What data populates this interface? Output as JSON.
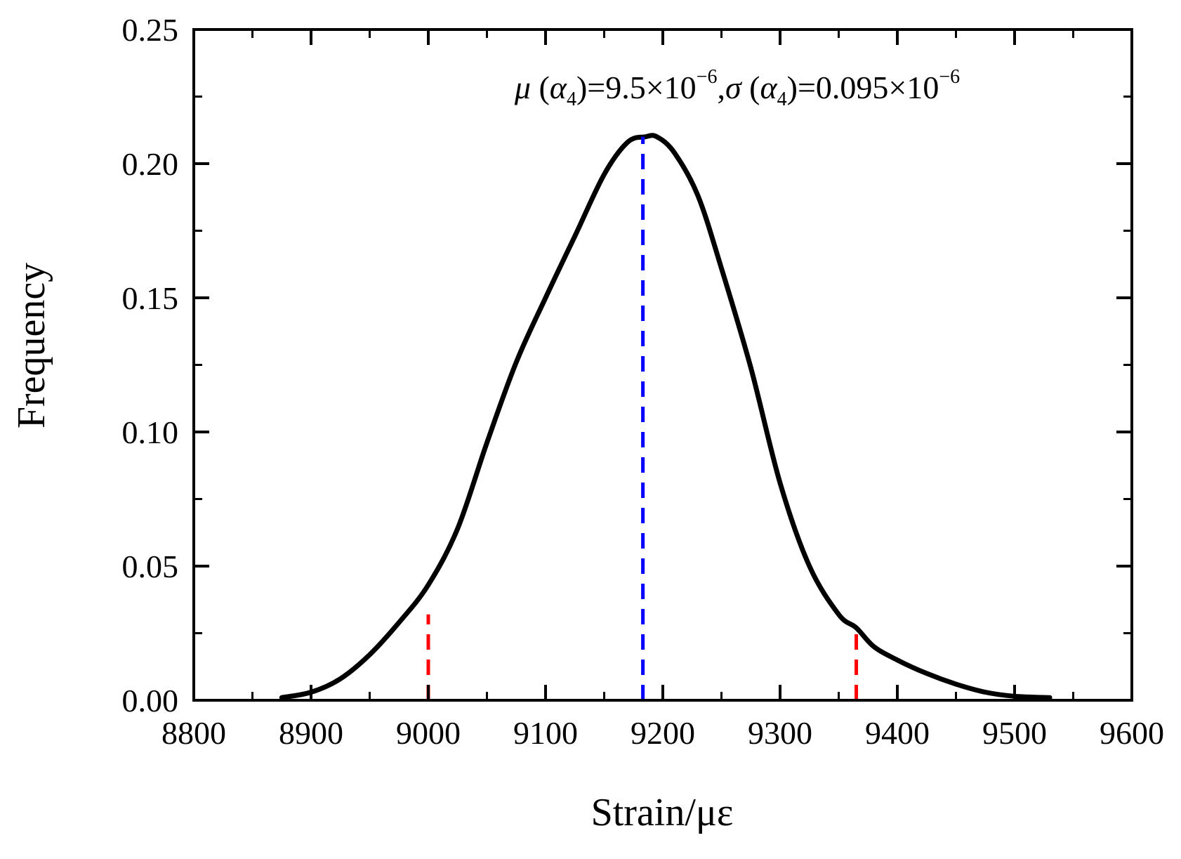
{
  "chart_data": {
    "type": "line",
    "title": "",
    "xlabel": "Strain/με",
    "ylabel": "Frequency",
    "xlim": [
      8800,
      9600
    ],
    "ylim": [
      0,
      0.25
    ],
    "xticks": [
      8800,
      8900,
      9000,
      9100,
      9200,
      9300,
      9400,
      9500,
      9600
    ],
    "xtick_labels": [
      "8800",
      "8900",
      "9000",
      "9100",
      "9200",
      "9300",
      "9400",
      "9500",
      "9600"
    ],
    "yticks": [
      0.0,
      0.05,
      0.1,
      0.15,
      0.2,
      0.25
    ],
    "ytick_labels": [
      "0.00",
      "0.05",
      "0.10",
      "0.15",
      "0.20",
      "0.25"
    ],
    "grid": false,
    "series": [
      {
        "name": "frequency-curve",
        "color": "#000000",
        "x": [
          8875,
          8900,
          8925,
          8950,
          8975,
          9000,
          9025,
          9050,
          9075,
          9100,
          9125,
          9150,
          9170,
          9185,
          9195,
          9210,
          9230,
          9250,
          9275,
          9300,
          9325,
          9350,
          9365,
          9380,
          9400,
          9425,
          9450,
          9475,
          9500,
          9530
        ],
        "y": [
          0.001,
          0.003,
          0.008,
          0.017,
          0.029,
          0.043,
          0.064,
          0.096,
          0.126,
          0.15,
          0.173,
          0.196,
          0.208,
          0.21,
          0.21,
          0.204,
          0.188,
          0.161,
          0.124,
          0.081,
          0.05,
          0.032,
          0.027,
          0.02,
          0.015,
          0.01,
          0.006,
          0.003,
          0.0015,
          0.001
        ]
      }
    ],
    "markers": [
      {
        "name": "mean-line",
        "x": 9183,
        "y_top": 0.21,
        "color": "#0000ff",
        "style": "dashed"
      },
      {
        "name": "lower-bound-line",
        "x": 9000,
        "y_top": 0.032,
        "color": "#ff0000",
        "style": "dashed"
      },
      {
        "name": "upper-bound-line",
        "x": 9365,
        "y_top": 0.028,
        "color": "#ff0000",
        "style": "dashed"
      }
    ],
    "annotation": {
      "mu": "μ",
      "alpha": "α",
      "sub": "4",
      "mu_value": "=9.5×10",
      "exp": "−6",
      "sigma": "σ",
      "sigma_value": "=0.095×10",
      "paren_open": " (",
      "paren_close": ")",
      "comma": ","
    }
  }
}
